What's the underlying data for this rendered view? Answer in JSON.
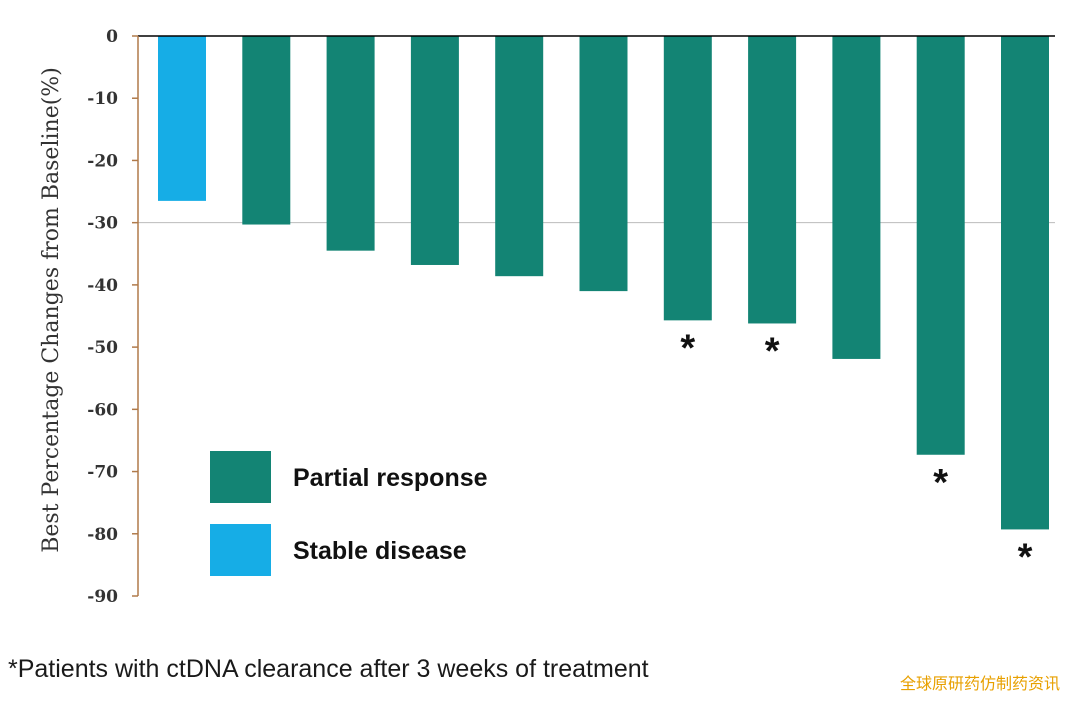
{
  "chart_data": {
    "type": "bar",
    "ylabel": "Best Percentage Changes from Baseline(%)",
    "ylim": [
      -90,
      0
    ],
    "yticks": [
      0,
      -10,
      -20,
      -30,
      -40,
      -50,
      -60,
      -70,
      -80,
      -90
    ],
    "reference_line": -30,
    "values": [
      -26.5,
      -30.3,
      -34.5,
      -36.8,
      -38.6,
      -41.0,
      -45.7,
      -46.2,
      -51.9,
      -67.3,
      -79.3
    ],
    "response": [
      "Stable disease",
      "Partial response",
      "Partial response",
      "Partial response",
      "Partial response",
      "Partial response",
      "Partial response",
      "Partial response",
      "Partial response",
      "Partial response",
      "Partial response"
    ],
    "ctdna_clearance": [
      false,
      false,
      false,
      false,
      false,
      false,
      true,
      true,
      false,
      true,
      true
    ],
    "marker_symbol": "*",
    "legend": [
      {
        "label": "Partial response",
        "color": "#138474"
      },
      {
        "label": "Stable disease",
        "color": "#16ade6"
      }
    ],
    "colors": {
      "Partial response": "#138474",
      "Stable disease": "#16ade6",
      "axis": "#b07a4a",
      "reference_line": "#bbbbbb"
    }
  },
  "footnote": "*Patients with ctDNA clearance after 3 weeks of treatment",
  "watermark": "全球原研药仿制药资讯"
}
